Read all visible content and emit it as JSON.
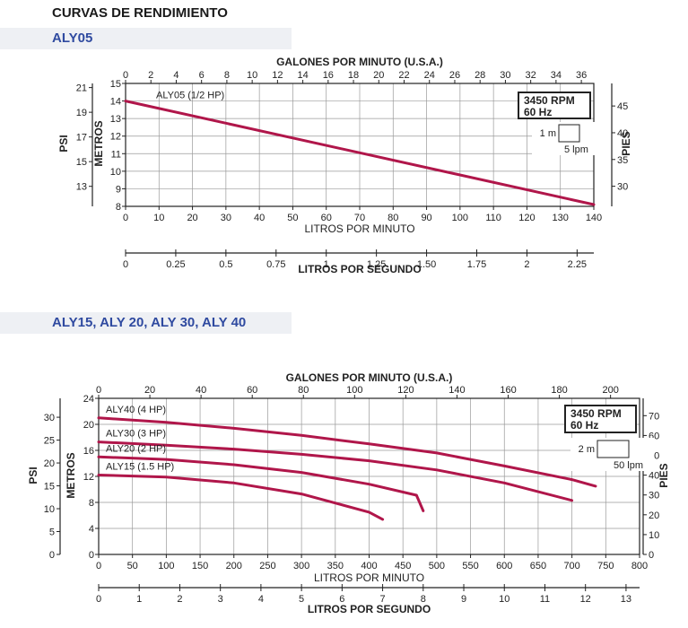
{
  "page": {
    "heading": "CURVAS DE RENDIMIENTO"
  },
  "colors": {
    "curve": "#b0164a",
    "grid": "#9a9a9a",
    "axis": "#222222",
    "band": "#eef0f4",
    "model_label": "#2f4aa0"
  },
  "chart_data": [
    {
      "type": "line",
      "model_label": "ALY05",
      "x": {
        "label": "LITROS POR MINUTO",
        "min": 0,
        "max": 140,
        "ticks": [
          0,
          10,
          20,
          30,
          40,
          50,
          60,
          70,
          80,
          90,
          100,
          110,
          120,
          130,
          140
        ]
      },
      "y": {
        "label": "METROS",
        "min": 8,
        "max": 15,
        "ticks": [
          8,
          9,
          10,
          11,
          12,
          13,
          14,
          15
        ]
      },
      "secondary_axes": {
        "top": {
          "label": "GALONES POR MINUTO (U.S.A.)",
          "ticks": [
            0,
            2,
            4,
            6,
            8,
            10,
            12,
            14,
            16,
            18,
            20,
            22,
            24,
            26,
            28,
            30,
            32,
            34,
            36
          ],
          "per_primary": 0.264172
        },
        "bottom": {
          "label": "LITROS POR SEGUNDO",
          "ticks": [
            "0",
            "0.25",
            "0.5",
            "0.75",
            "1",
            "1.25",
            "1.50",
            "1.75",
            "2",
            "2.25"
          ],
          "per_primary": 0.0166667
        },
        "left": {
          "label": "PSI",
          "ticks": [
            13,
            15,
            17,
            19,
            21
          ],
          "per_primary": 1.42233
        },
        "right": {
          "label": "PIES",
          "ticks": [
            30,
            35,
            40,
            45
          ],
          "per_primary": 3.28084
        }
      },
      "grid": true,
      "series": [
        {
          "name": "ALY05 (1/2 HP)",
          "points": [
            [
              0,
              14
            ],
            [
              140,
              8.1
            ]
          ]
        }
      ],
      "legend": {
        "rpm": "3450 RPM",
        "hz": "60 Hz",
        "scale_y": "1 m",
        "scale_x": "5 lpm"
      }
    },
    {
      "type": "line",
      "model_label": "ALY15, ALY 20, ALY 30, ALY 40",
      "x": {
        "label": "LITROS POR MINUTO",
        "min": 0,
        "max": 800,
        "ticks": [
          0,
          50,
          100,
          150,
          200,
          250,
          300,
          350,
          400,
          450,
          500,
          550,
          600,
          650,
          700,
          750,
          800
        ]
      },
      "y": {
        "label": "METROS",
        "min": 0,
        "max": 24,
        "ticks": [
          0,
          4,
          8,
          12,
          16,
          20,
          24
        ]
      },
      "secondary_axes": {
        "top": {
          "label": "GALONES POR MINUTO (U.S.A.)",
          "ticks": [
            0,
            20,
            40,
            60,
            80,
            100,
            120,
            140,
            160,
            180,
            200
          ],
          "per_primary": 0.264172
        },
        "bottom": {
          "label": "LITROS POR SEGUNDO",
          "ticks": [
            "0",
            "1",
            "2",
            "3",
            "4",
            "5",
            "6",
            "7",
            "8",
            "9",
            "10",
            "11",
            "12",
            "13"
          ],
          "per_primary": 0.0166667
        },
        "left": {
          "label": "PSI",
          "ticks": [
            0,
            5,
            10,
            15,
            20,
            25,
            30
          ],
          "per_primary": 1.42233
        },
        "right": {
          "label": "PIES",
          "ticks": [
            0,
            10,
            20,
            30,
            40,
            50,
            60,
            70
          ],
          "per_primary": 3.28084
        }
      },
      "grid": true,
      "series": [
        {
          "name": "ALY40 (4 HP)",
          "points": [
            [
              0,
              21
            ],
            [
              100,
              20.3
            ],
            [
              200,
              19.4
            ],
            [
              300,
              18.3
            ],
            [
              400,
              17
            ],
            [
              500,
              15.6
            ],
            [
              600,
              13.6
            ],
            [
              700,
              11.5
            ],
            [
              735,
              10.5
            ]
          ]
        },
        {
          "name": "ALY30 (3 HP)",
          "points": [
            [
              0,
              17.3
            ],
            [
              100,
              16.8
            ],
            [
              200,
              16.2
            ],
            [
              300,
              15.4
            ],
            [
              400,
              14.4
            ],
            [
              500,
              13
            ],
            [
              600,
              11
            ],
            [
              700,
              8.3
            ]
          ]
        },
        {
          "name": "ALY20 (2 HP)",
          "points": [
            [
              0,
              15
            ],
            [
              100,
              14.6
            ],
            [
              200,
              13.8
            ],
            [
              300,
              12.6
            ],
            [
              400,
              10.8
            ],
            [
              470,
              9.1
            ],
            [
              480,
              6.7
            ]
          ]
        },
        {
          "name": "ALY15 (1.5 HP)",
          "points": [
            [
              0,
              12.2
            ],
            [
              100,
              11.9
            ],
            [
              200,
              11
            ],
            [
              300,
              9.3
            ],
            [
              400,
              6.5
            ],
            [
              420,
              5.4
            ]
          ]
        }
      ],
      "legend": {
        "rpm": "3450 RPM",
        "hz": "60 Hz",
        "scale_y": "2 m",
        "scale_x": "50 lpm"
      }
    }
  ]
}
